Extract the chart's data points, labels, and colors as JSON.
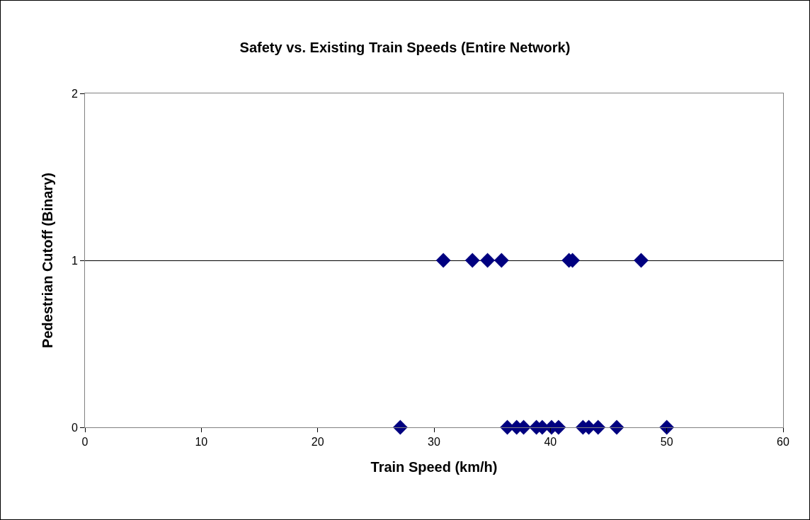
{
  "chart_data": {
    "type": "scatter",
    "title": "Safety vs. Existing Train Speeds (Entire Network)",
    "xlabel": "Train Speed (km/h)",
    "ylabel": "Pedestrian Cutoff (Binary)",
    "x": [
      30.8,
      33.3,
      34.6,
      35.8,
      41.6,
      41.9,
      47.8,
      27.1,
      36.3,
      37.1,
      37.7,
      38.8,
      39.3,
      40.1,
      40.7,
      42.8,
      43.3,
      44.1,
      45.7,
      50.0
    ],
    "values": [
      1,
      1,
      1,
      1,
      1,
      1,
      1,
      0,
      0,
      0,
      0,
      0,
      0,
      0,
      0,
      0,
      0,
      0,
      0,
      0
    ],
    "color": "#000080",
    "marker": "diamond",
    "xlim": [
      0,
      60
    ],
    "xticks": [
      0,
      10,
      20,
      30,
      40,
      50,
      60
    ],
    "ylim": [
      0,
      2
    ],
    "yticks": [
      0,
      1,
      2
    ],
    "grid": "y"
  }
}
